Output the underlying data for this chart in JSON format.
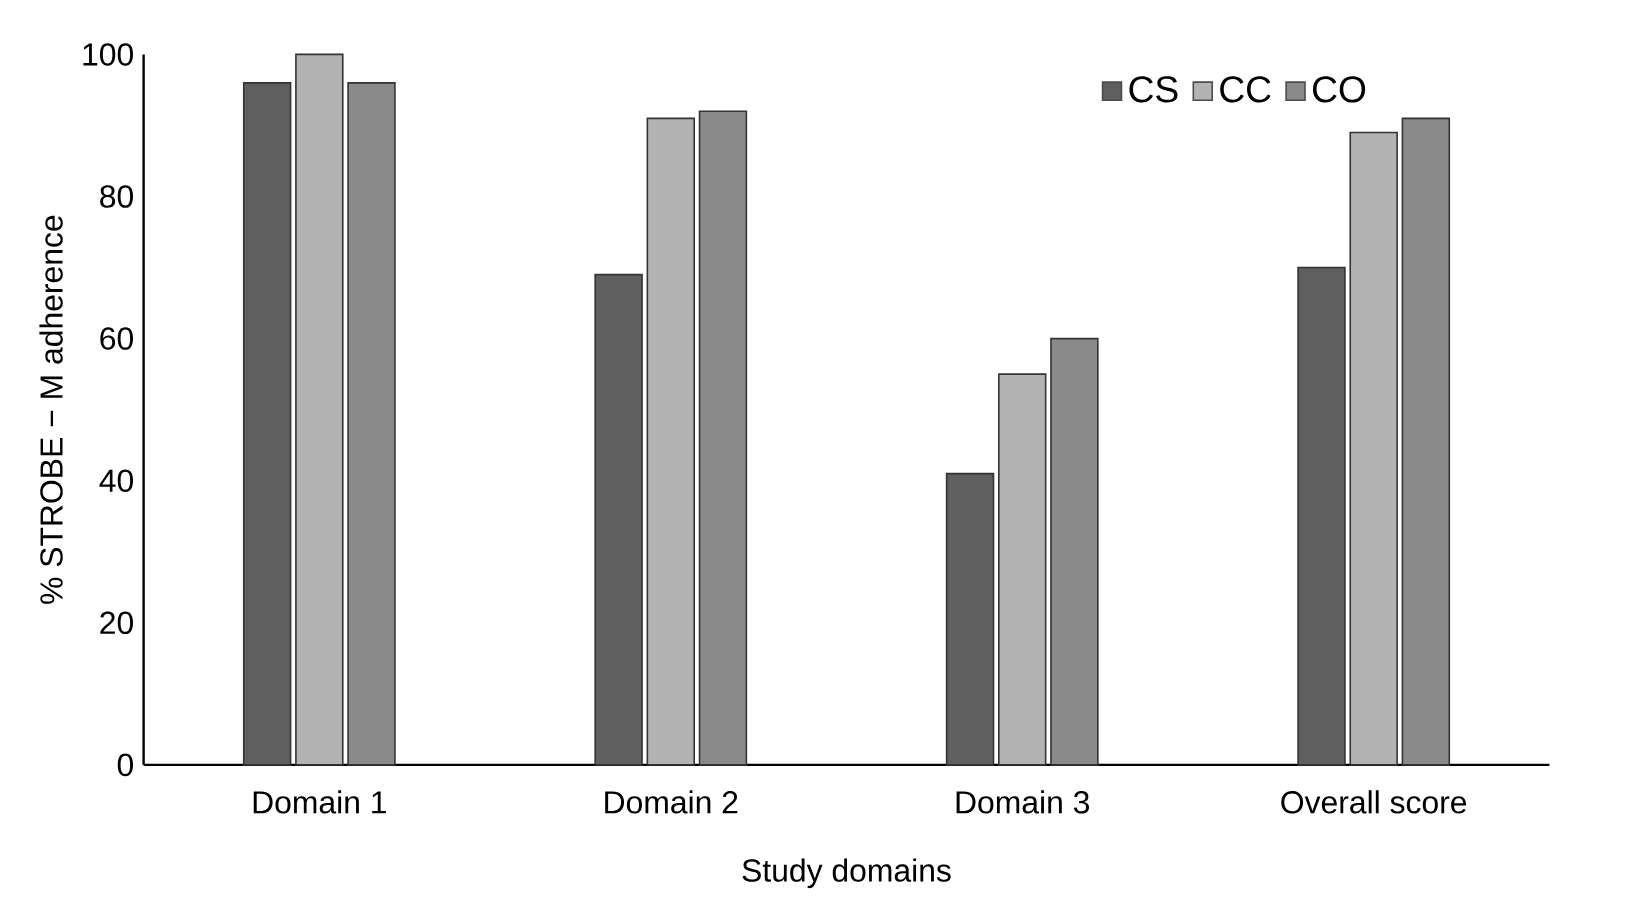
{
  "chart_data": {
    "type": "bar",
    "xlabel": "Study domains",
    "ylabel": "% STROBE − M adherence",
    "categories": [
      "Domain 1",
      "Domain 2",
      "Domain 3",
      "Overall score"
    ],
    "series": [
      {
        "name": "CS",
        "color": "#5f5f5f",
        "values": [
          96,
          69,
          41,
          70
        ]
      },
      {
        "name": "CC",
        "color": "#b3b3b3",
        "values": [
          100,
          91,
          55,
          89
        ]
      },
      {
        "name": "CO",
        "color": "#8a8a8a",
        "values": [
          96,
          92,
          60,
          91
        ]
      }
    ],
    "ylim": [
      0,
      100
    ],
    "yticks": [
      0,
      20,
      40,
      60,
      80,
      100
    ],
    "grid": false,
    "legend": "top right"
  }
}
